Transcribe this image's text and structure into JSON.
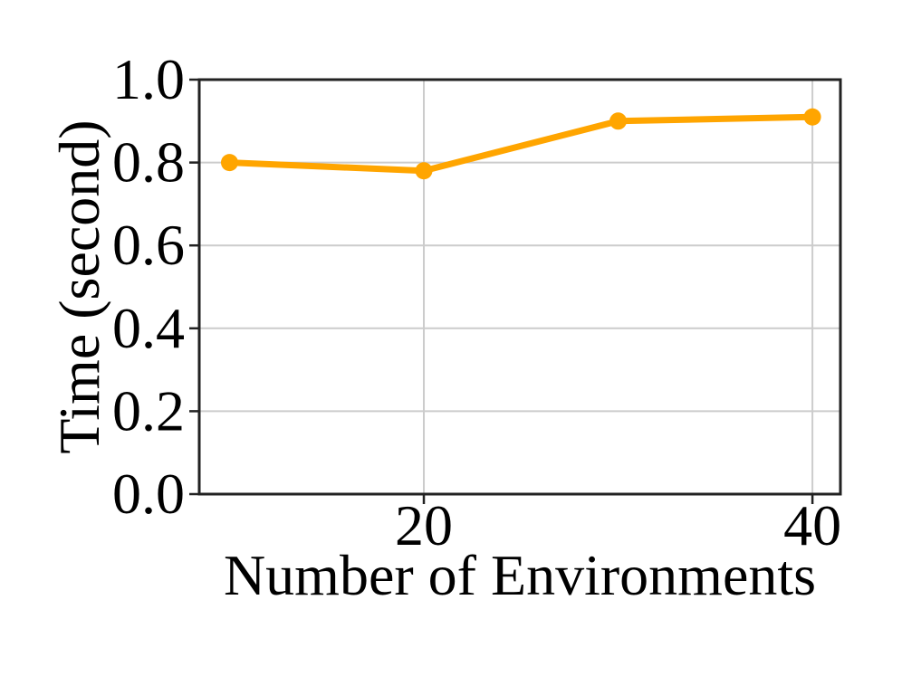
{
  "figure": {
    "background": "#ffffff"
  },
  "chart_data": {
    "type": "line",
    "xlabel": "Number of Environments",
    "ylabel": "Time (second)",
    "x": [
      10,
      20,
      30,
      40
    ],
    "series": [
      {
        "name": "time",
        "values": [
          0.8,
          0.78,
          0.9,
          0.91
        ],
        "color": "#FFA500"
      }
    ],
    "xlim": [
      8.44,
      41.44
    ],
    "ylim": [
      0.0,
      1.0
    ],
    "xticks": {
      "values": [
        20,
        40
      ],
      "labels": [
        "20",
        "40"
      ]
    },
    "yticks": {
      "values": [
        0.0,
        0.2,
        0.4,
        0.6,
        0.8,
        1.0
      ],
      "labels": [
        "0.0",
        "0.2",
        "0.4",
        "0.6",
        "0.8",
        "1.0"
      ]
    },
    "grid": true,
    "legend": null,
    "styles": {
      "line_color": "#FFA500",
      "grid_color": "#cccccc",
      "spine_color": "#222222",
      "tick_color": "#222222",
      "text_color": "#000000",
      "line_width": 7,
      "marker_radius": 9.5
    }
  }
}
